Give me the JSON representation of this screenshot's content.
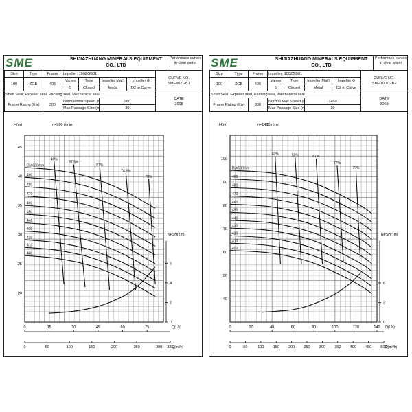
{
  "sheets": [
    {
      "logo": "SME",
      "company": "SHIJIAZHUANG MINERALS EQUIPMENT CO., LTD",
      "note": "Performace curves in clear water",
      "size_label": "Size",
      "type_label": "Type",
      "frame_label": "Frame",
      "impeller": "Impeller: 100ZGB01",
      "size": "100",
      "type": "ZGB",
      "frame": "406",
      "vanes_label": "Vanes",
      "type2_label": "Type",
      "impmat_label": "Impeller Mat'l",
      "impdia_label": "Impeller Φ",
      "vanes": "5",
      "type2": "Closed",
      "impmat": "Metal",
      "impdia": "D2 in Curve",
      "curve_label": "CURVE NO.",
      "curve_no": "SME80ZGB1",
      "shaft_seal": "Shaft Seal: Expeller seal, Packing seal, Mechanical seal",
      "frame_rating_label": "Frame Rating (Kw)",
      "frame_rating": "300",
      "max_speed_label": "Normal Max Speed (r/min):",
      "max_speed": "980",
      "max_passage_label": "Max Passage Size (mm):",
      "max_passage": "30",
      "date_label": "DATE",
      "date": "2008"
    },
    {
      "logo": "SME",
      "company": "SHIJIAZHUANG MINERALS EQUIPMENT CO., LTD",
      "note": "Performace curves in clear water",
      "size_label": "Size",
      "type_label": "Type",
      "frame_label": "Frame",
      "impeller": "Impeller: 100ZGB01",
      "size": "100",
      "type": "ZGB",
      "frame": "406",
      "vanes_label": "Vanes",
      "type2_label": "Type",
      "impmat_label": "Impeller Mat'l",
      "impdia_label": "Impeller Φ",
      "vanes": "5",
      "type2": "Closed",
      "impmat": "Metal",
      "impdia": "D2 in Curve",
      "curve_label": "CURVE NO.",
      "curve_no": "SME100ZGB2",
      "shaft_seal": "Shaft Seal: Expeller seal, Packing seal, Mechanical seal",
      "frame_rating_label": "Frame Rating (Kw)",
      "frame_rating": "300",
      "max_speed_label": "Normal Max Speed (r/min):",
      "max_speed": "1480",
      "max_passage_label": "Max Passage Size (mm):",
      "max_passage": "30",
      "date_label": "DATE",
      "date": "2008"
    }
  ],
  "chart_data": [
    {
      "type": "line",
      "title": "n=980 r/min",
      "ylabel": "H(m)",
      "npsh_label": "NPSHr (m)",
      "xlabel_ls": "Q(L/s)",
      "xlabel_m3h": "Q(m³/h)",
      "ylim": [
        15,
        47
      ],
      "xlim": [
        0,
        85
      ],
      "y_ticks": [
        20,
        25,
        30,
        35,
        40,
        45
      ],
      "npsh_ylim": [
        0,
        8
      ],
      "npsh_ticks": [
        0,
        2,
        4,
        6
      ],
      "x_ticks_ls": [
        0,
        15,
        30,
        45,
        60,
        75
      ],
      "x_ticks_m3h": [
        0,
        50,
        100,
        150,
        200,
        250,
        300,
        325
      ],
      "m3h_max": 325,
      "d_labels": [
        "D₂=500mm",
        "490",
        "480",
        "470",
        "460",
        "450",
        "440",
        "430",
        "420",
        "410",
        "400"
      ],
      "series": [
        {
          "name": "D₂=500mm",
          "x": [
            0,
            20,
            40,
            60,
            80
          ],
          "y": [
            41.5,
            41.0,
            39.8,
            37.6,
            34.5
          ]
        },
        {
          "name": "490",
          "x": [
            0,
            20,
            40,
            60,
            80
          ],
          "y": [
            39.8,
            39.3,
            38.1,
            35.9,
            32.8
          ]
        },
        {
          "name": "480",
          "x": [
            0,
            20,
            40,
            60,
            80
          ],
          "y": [
            38.2,
            37.7,
            36.5,
            34.3,
            31.2
          ]
        },
        {
          "name": "470",
          "x": [
            0,
            20,
            40,
            60,
            80
          ],
          "y": [
            36.6,
            36.1,
            34.9,
            32.7,
            29.6
          ]
        },
        {
          "name": "460",
          "x": [
            0,
            20,
            40,
            60,
            80
          ],
          "y": [
            35.0,
            34.5,
            33.3,
            31.1,
            28.0
          ]
        },
        {
          "name": "450",
          "x": [
            0,
            20,
            40,
            60,
            80
          ],
          "y": [
            33.5,
            33.0,
            31.8,
            29.6,
            26.5
          ]
        },
        {
          "name": "440",
          "x": [
            0,
            20,
            40,
            60,
            80
          ],
          "y": [
            32.0,
            31.5,
            30.3,
            28.1,
            25.0
          ]
        },
        {
          "name": "430",
          "x": [
            0,
            20,
            40,
            60,
            80
          ],
          "y": [
            30.6,
            30.1,
            28.9,
            26.7,
            23.6
          ]
        },
        {
          "name": "420",
          "x": [
            0,
            20,
            40,
            60,
            80
          ],
          "y": [
            29.1,
            28.6,
            27.4,
            25.2,
            22.1
          ]
        },
        {
          "name": "410",
          "x": [
            0,
            20,
            40,
            60,
            80
          ],
          "y": [
            27.8,
            27.3,
            26.1,
            23.9,
            20.8
          ]
        },
        {
          "name": "400",
          "x": [
            0,
            20,
            40,
            60,
            80
          ],
          "y": [
            26.4,
            25.9,
            24.7,
            22.5,
            19.4
          ]
        }
      ],
      "efficiency": [
        {
          "name": "40%",
          "x": [
            18,
            24
          ],
          "y": [
            42.5,
            21.5
          ]
        },
        {
          "name": "57.5%",
          "x": [
            30,
            37
          ],
          "y": [
            42.0,
            21.0
          ]
        },
        {
          "name": "67%",
          "x": [
            46,
            52
          ],
          "y": [
            41.5,
            20.5
          ]
        },
        {
          "name": "74.5%",
          "x": [
            62,
            68
          ],
          "y": [
            40.5,
            20.5
          ]
        },
        {
          "name": "78%",
          "x": [
            76,
            80
          ],
          "y": [
            39.5,
            21.5
          ]
        }
      ],
      "npsh": {
        "x": [
          15,
          30,
          45,
          60,
          70,
          80
        ],
        "y": [
          0.9,
          1.1,
          1.6,
          2.6,
          3.8,
          5.6
        ]
      }
    },
    {
      "type": "line",
      "title": "n=1480 r/min",
      "ylabel": "H(m)",
      "npsh_label": "NPSHr (m)",
      "xlabel_ls": "Q(L/s)",
      "xlabel_m3h": "Q(m³/h)",
      "ylim": [
        30,
        110
      ],
      "xlim": [
        0,
        140
      ],
      "y_ticks": [
        40,
        50,
        60,
        70,
        80,
        90,
        100
      ],
      "npsh_ylim": [
        0,
        12
      ],
      "npsh_ticks": [
        0,
        3,
        6
      ],
      "x_ticks_ls": [
        0,
        20,
        40,
        60,
        80,
        100,
        120,
        140
      ],
      "x_ticks_m3h": [
        0,
        50,
        100,
        150,
        200,
        250,
        300,
        350,
        400,
        450,
        500
      ],
      "m3h_max": 500,
      "d_labels": [
        "D₂=500mm",
        "490",
        "480",
        "470",
        "460",
        "450",
        "440",
        "430",
        "420",
        "410",
        "400"
      ],
      "series": [
        {
          "name": "D₂=500mm",
          "x": [
            0,
            40,
            80,
            120,
            135
          ],
          "y": [
            95.0,
            93.8,
            89.5,
            81.0,
            76.5
          ]
        },
        {
          "name": "490",
          "x": [
            0,
            40,
            80,
            120,
            135
          ],
          "y": [
            91.3,
            90.1,
            85.8,
            77.3,
            72.8
          ]
        },
        {
          "name": "480",
          "x": [
            0,
            40,
            80,
            120,
            135
          ],
          "y": [
            87.6,
            86.4,
            82.1,
            73.6,
            69.1
          ]
        },
        {
          "name": "470",
          "x": [
            0,
            40,
            80,
            120,
            135
          ],
          "y": [
            84.0,
            82.8,
            78.5,
            70.0,
            65.5
          ]
        },
        {
          "name": "460",
          "x": [
            0,
            40,
            80,
            120,
            135
          ],
          "y": [
            80.5,
            79.3,
            75.0,
            66.5,
            62.0
          ]
        },
        {
          "name": "450",
          "x": [
            0,
            40,
            80,
            120,
            135
          ],
          "y": [
            77.0,
            75.8,
            71.5,
            63.0,
            58.5
          ]
        },
        {
          "name": "440",
          "x": [
            0,
            40,
            80,
            120,
            135
          ],
          "y": [
            73.6,
            72.4,
            68.1,
            59.6,
            55.1
          ]
        },
        {
          "name": "430",
          "x": [
            0,
            40,
            80,
            120,
            135
          ],
          "y": [
            70.3,
            69.1,
            64.8,
            56.3,
            51.8
          ]
        },
        {
          "name": "420",
          "x": [
            0,
            40,
            80,
            120,
            135
          ],
          "y": [
            67.0,
            65.8,
            61.5,
            53.0,
            48.5
          ]
        },
        {
          "name": "410",
          "x": [
            0,
            40,
            80,
            120,
            135
          ],
          "y": [
            63.8,
            62.6,
            58.3,
            49.8,
            45.3
          ]
        },
        {
          "name": "400",
          "x": [
            0,
            40,
            80,
            120,
            135
          ],
          "y": [
            60.7,
            59.5,
            55.2,
            46.7,
            42.2
          ]
        }
      ],
      "efficiency": [
        {
          "name": "40%",
          "x": [
            43,
            48
          ],
          "y": [
            101.0,
            55.0
          ]
        },
        {
          "name": "58%",
          "x": [
            62,
            68
          ],
          "y": [
            100.5,
            55.0
          ]
        },
        {
          "name": "67%",
          "x": [
            82,
            88
          ],
          "y": [
            100.0,
            55.0
          ]
        },
        {
          "name": "7?%",
          "x": [
            102,
            108
          ],
          "y": [
            97.0,
            56.0
          ]
        },
        {
          "name": "7?%",
          "x": [
            120,
            124
          ],
          "y": [
            95.0,
            57.0
          ]
        }
      ],
      "npsh": {
        "x": [
          30,
          60,
          80,
          100,
          115,
          125
        ],
        "y": [
          1.5,
          1.9,
          2.8,
          4.3,
          6.0,
          7.6
        ]
      }
    }
  ]
}
